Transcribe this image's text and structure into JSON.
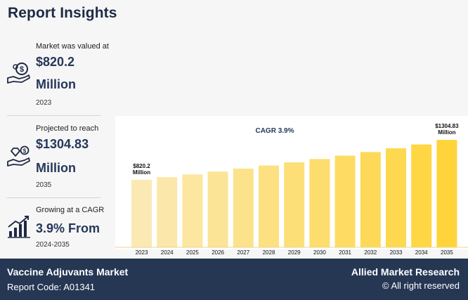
{
  "header": {
    "title": "Report Insights"
  },
  "stats": [
    {
      "label": "Market was valued at",
      "value_line1": "$820.2",
      "value_line2": "Million",
      "year": "2023",
      "icon": "money-hand-icon"
    },
    {
      "label": "Projected to reach",
      "value_line1": "$1304.83",
      "value_line2": "Million",
      "year": "2035",
      "icon": "diamond-hand-icon"
    },
    {
      "label": "Growing at a CAGR",
      "value_line1": "3.9% From",
      "year": "2024-2035",
      "icon": "growth-chart-icon"
    }
  ],
  "chart_data": {
    "type": "bar",
    "annotation": "CAGR 3.9%",
    "categories": [
      "2023",
      "2024",
      "2025",
      "2026",
      "2027",
      "2028",
      "2029",
      "2030",
      "2031",
      "2032",
      "2033",
      "2034",
      "2035"
    ],
    "values": [
      820.2,
      852.2,
      885.4,
      919.9,
      955.8,
      993.1,
      1031.8,
      1072.1,
      1113.9,
      1157.3,
      1202.5,
      1249.4,
      1304.83
    ],
    "data_labels": [
      {
        "index": 0,
        "line1": "$820.2",
        "line2": "Million"
      },
      {
        "index": 12,
        "line1": "$1304.83",
        "line2": "Million"
      }
    ],
    "colors": [
      "#fbe9b4",
      "#ffd43a"
    ],
    "ylim": [
      0,
      1400
    ],
    "grid": false,
    "legend": "none"
  },
  "footer": {
    "market": "Vaccine Adjuvants Market",
    "report_code": "Report Code: A01341",
    "brand": "Allied Market Research",
    "rights": "© All right reserved"
  }
}
